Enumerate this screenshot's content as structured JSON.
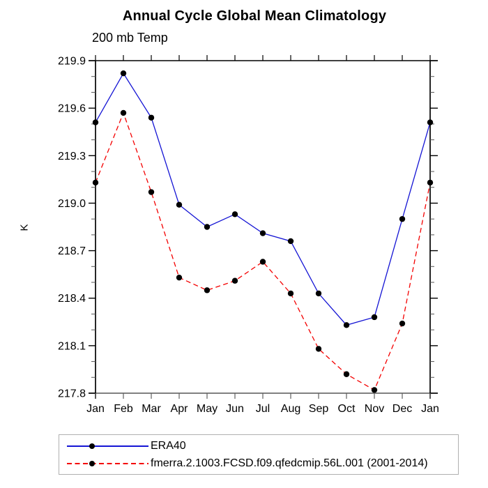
{
  "title": "Annual Cycle Global Mean Climatology",
  "subtitle": "200 mb Temp",
  "ylabel": "K",
  "chart_data": {
    "type": "line",
    "title": "Annual Cycle Global Mean Climatology",
    "subtitle": "200 mb Temp",
    "xlabel": "",
    "ylabel": "K",
    "x_categories": [
      "Jan",
      "Feb",
      "Mar",
      "Apr",
      "May",
      "Jun",
      "Jul",
      "Aug",
      "Sep",
      "Oct",
      "Nov",
      "Dec",
      "Jan"
    ],
    "ylim": [
      217.8,
      219.9
    ],
    "ytick_major": [
      217.8,
      218.1,
      218.4,
      218.7,
      219.0,
      219.3,
      219.6,
      219.9
    ],
    "ytick_minor_step": 0.1,
    "grid": false,
    "legend_position": "bottom-left",
    "series": [
      {
        "name": "ERA40",
        "color": "#1414d4",
        "line_style": "solid",
        "marker": "filled-circle",
        "marker_color": "#000000",
        "values": [
          219.51,
          219.82,
          219.54,
          218.99,
          218.85,
          218.93,
          218.81,
          218.76,
          218.43,
          218.23,
          218.28,
          218.9,
          219.51
        ]
      },
      {
        "name": "fmerra.2.1003.FCSD.f09.qfedcmip.56L.001 (2001-2014)",
        "color": "#f40000",
        "line_style": "dashed",
        "marker": "filled-circle",
        "marker_color": "#000000",
        "values": [
          219.13,
          219.57,
          219.07,
          218.53,
          218.45,
          218.51,
          218.63,
          218.43,
          218.08,
          217.92,
          217.82,
          218.24,
          219.13
        ]
      }
    ],
    "axis_colors": {
      "top": "#000000",
      "left": "#000000",
      "right": "#000000",
      "bottom": "#808080"
    }
  }
}
